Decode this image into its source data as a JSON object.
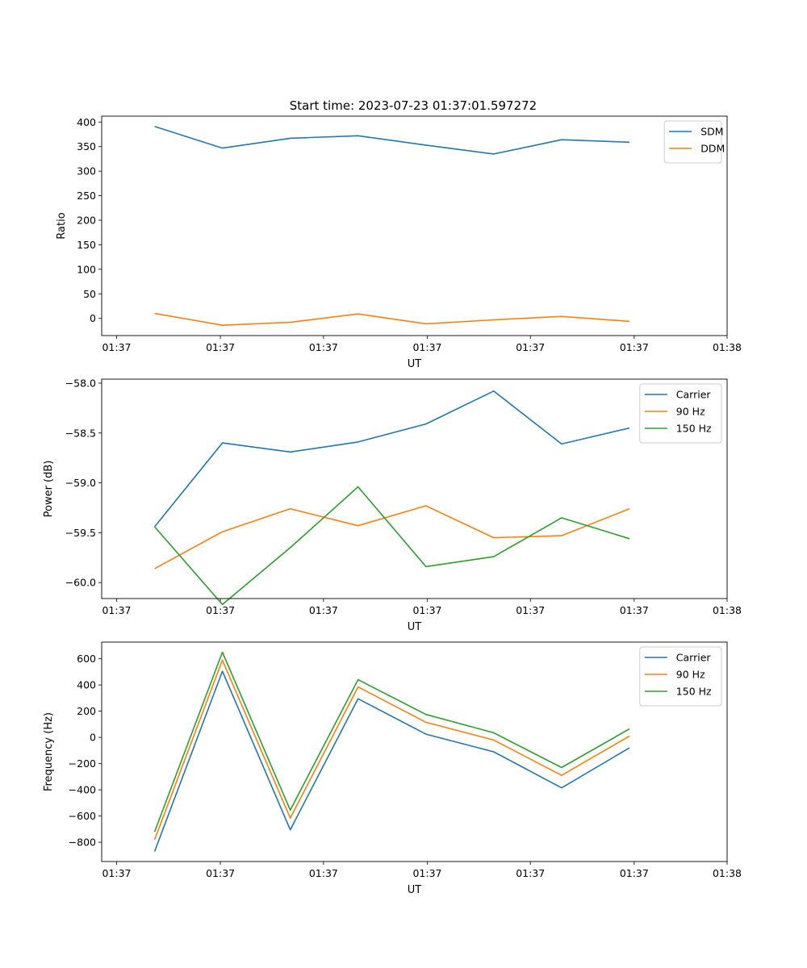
{
  "figure_title": "Start time: 2023-07-23 01:37:01.597272",
  "colors": {
    "c0": "#1f77b4",
    "c1": "#ff7f0e",
    "c2": "#2ca02c"
  },
  "chart_data": [
    {
      "type": "line",
      "title": "Start time: 2023-07-23 01:37:01.597272",
      "xlabel": "UT",
      "ylabel": "Ratio",
      "x": [
        1,
        2,
        3,
        4,
        5,
        6,
        7,
        8
      ],
      "xlim": [
        0.22,
        9.44
      ],
      "xticks": [
        0.44,
        1.97,
        3.49,
        5.02,
        6.54,
        8.07,
        9.44
      ],
      "xtick_labels": [
        "01:37",
        "01:37",
        "01:37",
        "01:37",
        "01:37",
        "01:37",
        "01:38"
      ],
      "ylim": [
        -35,
        412
      ],
      "yticks": [
        0,
        50,
        100,
        150,
        200,
        250,
        300,
        350,
        400
      ],
      "ytick_labels": [
        "0",
        "50",
        "100",
        "150",
        "200",
        "250",
        "300",
        "350",
        "400"
      ],
      "legend_position": "top-right",
      "series": [
        {
          "name": "SDM",
          "color": "#1f77b4",
          "values": [
            391,
            347,
            367,
            372,
            353,
            335,
            364,
            359
          ]
        },
        {
          "name": "DDM",
          "color": "#ff7f0e",
          "values": [
            10,
            -14,
            -8,
            9,
            -11,
            -3,
            4,
            -6
          ]
        }
      ]
    },
    {
      "type": "line",
      "title": "",
      "xlabel": "UT",
      "ylabel": "Power (dB)",
      "x": [
        1,
        2,
        3,
        4,
        5,
        6,
        7,
        8
      ],
      "xlim": [
        0.22,
        9.44
      ],
      "xticks": [
        0.44,
        1.97,
        3.49,
        5.02,
        6.54,
        8.07,
        9.44
      ],
      "xtick_labels": [
        "01:37",
        "01:37",
        "01:37",
        "01:37",
        "01:37",
        "01:37",
        "01:38"
      ],
      "ylim": [
        -60.16,
        -57.96
      ],
      "yticks": [
        -60.0,
        -59.5,
        -59.0,
        -58.5,
        -58.0
      ],
      "ytick_labels": [
        "−60.0",
        "−59.5",
        "−59.0",
        "−58.5",
        "−58.0"
      ],
      "legend_position": "top-right",
      "series": [
        {
          "name": "Carrier",
          "color": "#1f77b4",
          "values": [
            -59.44,
            -58.6,
            -58.69,
            -58.59,
            -58.41,
            -58.08,
            -58.61,
            -58.45
          ]
        },
        {
          "name": "90 Hz",
          "color": "#ff7f0e",
          "values": [
            -59.86,
            -59.49,
            -59.26,
            -59.43,
            -59.23,
            -59.55,
            -59.53,
            -59.26
          ]
        },
        {
          "name": "150 Hz",
          "color": "#2ca02c",
          "values": [
            -59.44,
            -60.22,
            -59.65,
            -59.04,
            -59.84,
            -59.74,
            -59.35,
            -59.56
          ]
        }
      ]
    },
    {
      "type": "line",
      "title": "",
      "xlabel": "UT",
      "ylabel": "Frequency (Hz)",
      "x": [
        1,
        2,
        3,
        4,
        5,
        6,
        7,
        8
      ],
      "xlim": [
        0.22,
        9.44
      ],
      "xticks": [
        0.44,
        1.97,
        3.49,
        5.02,
        6.54,
        8.07,
        9.44
      ],
      "xtick_labels": [
        "01:37",
        "01:37",
        "01:37",
        "01:37",
        "01:37",
        "01:37",
        "01:38"
      ],
      "ylim": [
        -947,
        727
      ],
      "yticks": [
        -800,
        -600,
        -400,
        -200,
        0,
        200,
        400,
        600
      ],
      "ytick_labels": [
        "−800",
        "−600",
        "−400",
        "−200",
        "0",
        "200",
        "400",
        "600"
      ],
      "legend_position": "top-right",
      "series": [
        {
          "name": "Carrier",
          "color": "#1f77b4",
          "values": [
            -870,
            505,
            -705,
            295,
            25,
            -110,
            -385,
            -80
          ]
        },
        {
          "name": "90 Hz",
          "color": "#ff7f0e",
          "values": [
            -780,
            590,
            -615,
            385,
            115,
            -20,
            -290,
            10
          ]
        },
        {
          "name": "150 Hz",
          "color": "#2ca02c",
          "values": [
            -720,
            650,
            -555,
            440,
            175,
            35,
            -230,
            65
          ]
        }
      ]
    }
  ]
}
